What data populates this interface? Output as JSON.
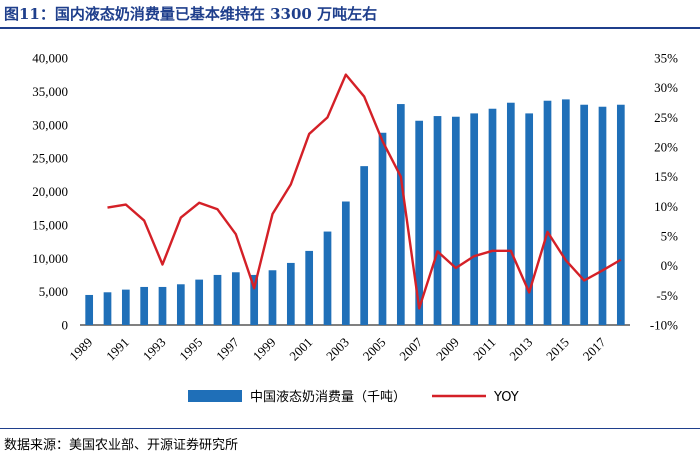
{
  "header": {
    "title": "图11：国内液态奶消费量已基本维持在 3300 万吨左右"
  },
  "footer": {
    "source": "数据来源：美国农业部、开源证券研究所"
  },
  "colors": {
    "bar": "#1f6fb8",
    "line": "#d42027",
    "title": "#1f3f8c"
  },
  "chart_data": {
    "type": "bar+line",
    "title": "",
    "categories": [
      "1989",
      "1990",
      "1991",
      "1992",
      "1993",
      "1994",
      "1995",
      "1996",
      "1997",
      "1998",
      "1999",
      "2000",
      "2001",
      "2002",
      "2003",
      "2004",
      "2005",
      "2006",
      "2007",
      "2008",
      "2009",
      "2010",
      "2011",
      "2012",
      "2013",
      "2014",
      "2015",
      "2016",
      "2017",
      "2018"
    ],
    "x_tick_labels": [
      "1989",
      "1991",
      "1993",
      "1995",
      "1997",
      "1999",
      "2001",
      "2003",
      "2005",
      "2007",
      "2009",
      "2011",
      "2013",
      "2015",
      "2017"
    ],
    "series": [
      {
        "name": "中国液态奶消费量（千吨）",
        "type": "bar",
        "axis": "left",
        "values": [
          4500,
          4900,
          5300,
          5700,
          5700,
          6100,
          6800,
          7500,
          7900,
          7500,
          8200,
          9300,
          11100,
          14000,
          18500,
          23800,
          28800,
          33100,
          30600,
          31300,
          31200,
          31700,
          32400,
          33300,
          31700,
          33600,
          33800,
          33000,
          32700,
          33000
        ]
      },
      {
        "name": "YOY",
        "type": "line",
        "axis": "right",
        "values": [
          null,
          9.8,
          10.3,
          7.6,
          0.2,
          8.1,
          10.6,
          9.5,
          5.3,
          -3.8,
          8.7,
          13.7,
          22.2,
          25.0,
          32.2,
          28.5,
          21.0,
          15.0,
          -7.2,
          2.4,
          -0.4,
          1.6,
          2.5,
          2.5,
          -4.5,
          5.7,
          0.9,
          -2.5,
          -0.8,
          1.0
        ]
      }
    ],
    "left_axis": {
      "min": 0,
      "max": 40000,
      "step": 5000,
      "tick_labels": [
        "0",
        "5,000",
        "10,000",
        "15,000",
        "20,000",
        "25,000",
        "30,000",
        "35,000",
        "40,000"
      ]
    },
    "right_axis": {
      "min": -10,
      "max": 35,
      "step": 5,
      "tick_labels": [
        "-10%",
        "-5%",
        "0%",
        "5%",
        "10%",
        "15%",
        "20%",
        "25%",
        "30%",
        "35%"
      ]
    },
    "legend": {
      "position": "bottom",
      "items": [
        "中国液态奶消费量（千吨）",
        "YOY"
      ]
    },
    "grid": false
  }
}
